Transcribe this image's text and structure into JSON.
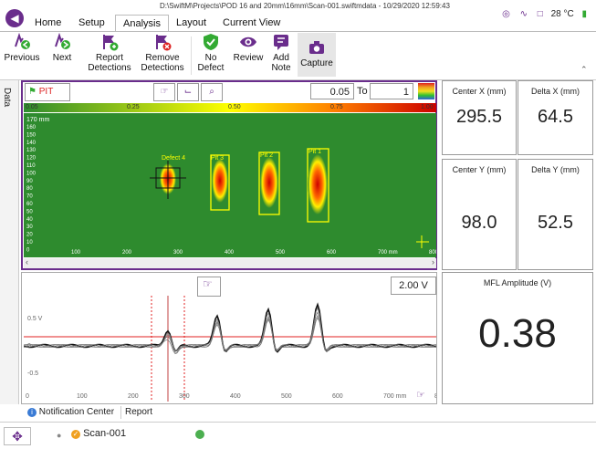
{
  "window": {
    "file_path": "D:\\SwiftM\\Projects\\POD 16 and 20mm\\16mm\\Scan-001.swiftmdata - 10/29/2020 12:59:43",
    "back_icon": "back-arrow-icon"
  },
  "status": {
    "temperature": "28 °C",
    "icons": [
      "target-icon",
      "signal-icon",
      "probe-icon",
      "battery-icon"
    ]
  },
  "tabs": [
    {
      "label": "Home"
    },
    {
      "label": "Setup"
    },
    {
      "label": "Analysis",
      "active": true
    },
    {
      "label": "Layout"
    },
    {
      "label": "Current View"
    }
  ],
  "ribbon": {
    "previous": "Previous",
    "next": "Next",
    "report_1": "Report",
    "report_2": "Detections",
    "remove_1": "Remove",
    "remove_2": "Detections",
    "nodefect_1": "No",
    "nodefect_2": "Defect",
    "review": "Review",
    "addnote_1": "Add",
    "addnote_2": "Note",
    "capture": "Capture",
    "collapse_icon": "chevron-up-icon"
  },
  "side_tab": {
    "label": "Data"
  },
  "top_plot": {
    "indication_type": "PIT",
    "range_min": "0.05",
    "range_to": "To",
    "range_max": "1",
    "colorbar_ticks": [
      "0.05",
      "0.25",
      "0.50",
      "0.75",
      "1.00"
    ],
    "y_unit_label": "170 mm",
    "y_ticks": [
      "160",
      "150",
      "140",
      "130",
      "120",
      "110",
      "100",
      "90",
      "80",
      "70",
      "60",
      "50",
      "40",
      "30",
      "20",
      "10",
      "0"
    ],
    "x_ticks": [
      "100",
      "200",
      "300",
      "400",
      "500",
      "600",
      "700 mm",
      "800"
    ],
    "detection_labels": [
      "Defect 4",
      "Pit 3",
      "Pit 2",
      "Pit 1"
    ]
  },
  "bottom_plot": {
    "voltage_scale": "2.00 V",
    "y_ticks": [
      "0.5 V",
      "0",
      "-0.5"
    ],
    "x_ticks": [
      "0",
      "100",
      "200",
      "300",
      "400",
      "500",
      "600",
      "700 mm",
      "800"
    ]
  },
  "readouts": {
    "center_x_label": "Center X (mm)",
    "center_x_value": "295.5",
    "delta_x_label": "Delta X (mm)",
    "delta_x_value": "64.5",
    "center_y_label": "Center Y (mm)",
    "center_y_value": "98.0",
    "delta_y_label": "Delta Y (mm)",
    "delta_y_value": "52.5",
    "mfl_label": "MFL Amplitude (V)",
    "mfl_value": "0.38"
  },
  "bottom_tabs": {
    "notification": "Notification Center",
    "report": "Report"
  },
  "footer": {
    "scan_name": "Scan-001"
  }
}
